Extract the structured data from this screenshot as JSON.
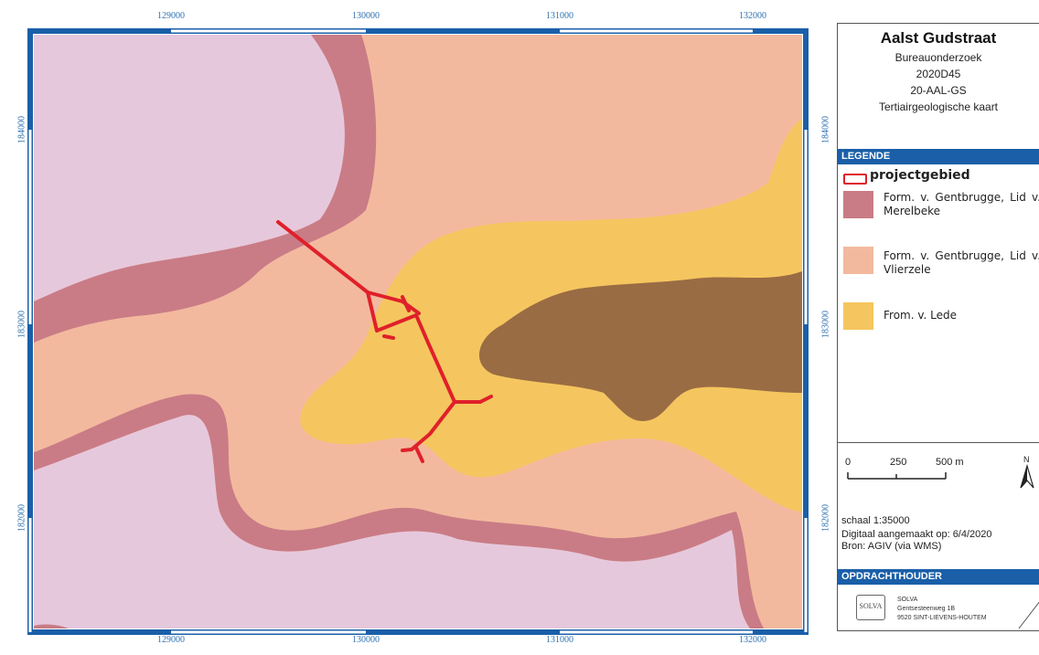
{
  "map": {
    "coords_x": [
      "129000",
      "130000",
      "131000",
      "132000"
    ],
    "coords_y": [
      "184000",
      "183000",
      "182000"
    ],
    "colors": {
      "lilac": "#e6c8dc",
      "rose": "#c97c86",
      "salmon": "#f3b99e",
      "yellow": "#f5c65f",
      "brown": "#9a6c44",
      "project": "#e0202a",
      "frame": "#1a5fa8"
    }
  },
  "panel": {
    "title": "Aalst Gudstraat",
    "lines": [
      "Bureauonderzoek",
      "2020D45",
      "20-AAL-GS",
      "Tertiairgeologische kaart"
    ],
    "legend_header": "LEGENDE",
    "legend": [
      {
        "label": "projectgebied"
      },
      {
        "label": "Form. v. Gentbrugge, Lid v. Merelbeke"
      },
      {
        "label": "Form. v. Gentbrugge, Lid v. Vlierzele"
      },
      {
        "label": "From. v. Lede"
      }
    ],
    "scalebar": {
      "labels": [
        "0",
        "250",
        "500 m"
      ]
    },
    "north": "N",
    "scale": "schaal  1:35000",
    "made": "Digitaal aangemaakt op: 6/4/2020",
    "source": "Bron: AGIV (via WMS)",
    "client_header": "OPDRACHTHOUDER",
    "logo": "SOLVA",
    "address": [
      "SOLVA",
      "Gentsesteenweg 1B",
      "9520 SINT-LIEVENS-HOUTEM"
    ]
  }
}
